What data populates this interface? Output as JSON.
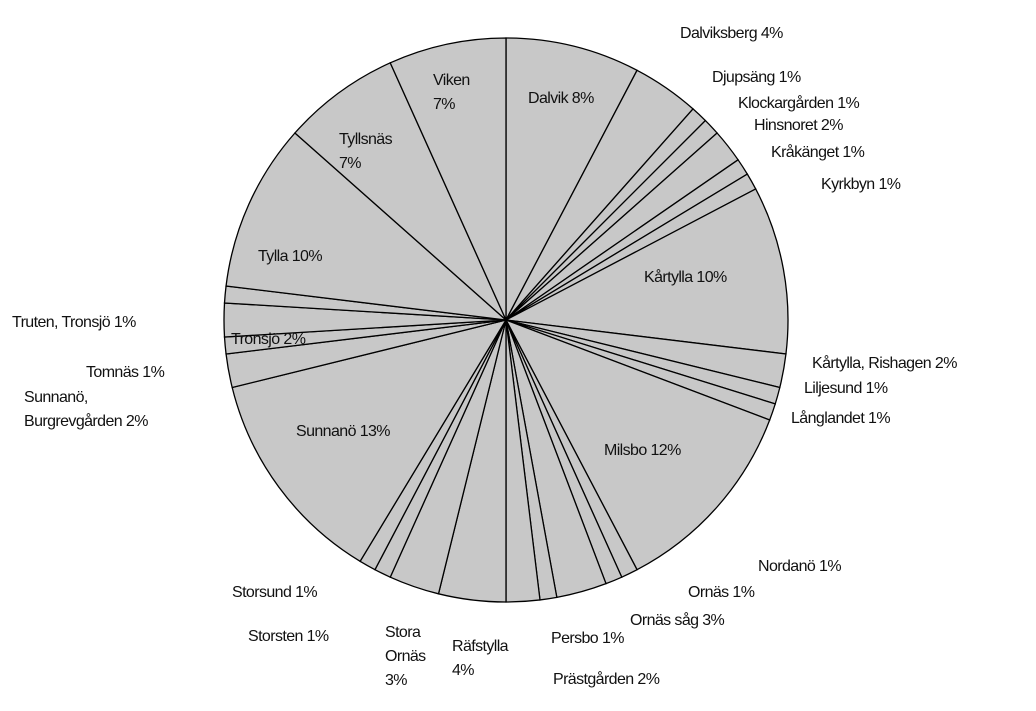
{
  "chart_data": {
    "type": "pie",
    "start_angle_deg": 0,
    "direction": "clockwise",
    "fill_color": "#c8c8c8",
    "stroke_color": "#000000",
    "slices": [
      {
        "label": "Dalvik",
        "value": 8,
        "text": [
          "Dalvik 8%"
        ]
      },
      {
        "label": "Dalviksberg",
        "value": 4,
        "text": [
          "Dalviksberg 4%"
        ]
      },
      {
        "label": "Djupsäng",
        "value": 1,
        "text": [
          "Djupsäng 1%"
        ]
      },
      {
        "label": "Klockargården",
        "value": 1,
        "text": [
          "Klockargården 1%"
        ]
      },
      {
        "label": "Hinsnoret",
        "value": 2,
        "text": [
          "Hinsnoret 2%"
        ]
      },
      {
        "label": "Kråkänget",
        "value": 1,
        "text": [
          "Kråkänget 1%"
        ]
      },
      {
        "label": "Kyrkbyn",
        "value": 1,
        "text": [
          "Kyrkbyn 1%"
        ]
      },
      {
        "label": "Kårtylla",
        "value": 10,
        "text": [
          "Kårtylla 10%"
        ]
      },
      {
        "label": "Kårtylla, Rishagen",
        "value": 2,
        "text": [
          "Kårtylla, Rishagen 2%"
        ]
      },
      {
        "label": "Liljesund",
        "value": 1,
        "text": [
          "Liljesund 1%"
        ]
      },
      {
        "label": "Långlandet",
        "value": 1,
        "text": [
          "Långlandet 1%"
        ]
      },
      {
        "label": "Milsbo",
        "value": 12,
        "text": [
          "Milsbo 12%"
        ]
      },
      {
        "label": "Nordanö",
        "value": 1,
        "text": [
          "Nordanö 1%"
        ]
      },
      {
        "label": "Ornäs",
        "value": 1,
        "text": [
          "Ornäs 1%"
        ]
      },
      {
        "label": "Ornäs såg",
        "value": 3,
        "text": [
          "Ornäs såg 3%"
        ]
      },
      {
        "label": "Persbo",
        "value": 1,
        "text": [
          "Persbo 1%"
        ]
      },
      {
        "label": "Prästgården",
        "value": 2,
        "text": [
          "Prästgården 2%"
        ]
      },
      {
        "label": "Räfstylla",
        "value": 4,
        "text": [
          "Räfstylla",
          "4%"
        ]
      },
      {
        "label": "Stora Ornäs",
        "value": 3,
        "text": [
          "Stora",
          "Ornäs",
          "3%"
        ]
      },
      {
        "label": "Storsten",
        "value": 1,
        "text": [
          "Storsten 1%"
        ]
      },
      {
        "label": "Storsund",
        "value": 1,
        "text": [
          "Storsund 1%"
        ]
      },
      {
        "label": "Sunnanö",
        "value": 13,
        "text": [
          "Sunnanö 13%"
        ]
      },
      {
        "label": "Sunnanö, Burgrevgården",
        "value": 2,
        "text": [
          "Sunnanö,",
          "Burgrevgården 2%"
        ]
      },
      {
        "label": "Tomnäs",
        "value": 1,
        "text": [
          "Tomnäs 1%"
        ]
      },
      {
        "label": "Tronsjö",
        "value": 2,
        "text": [
          "Tronsjö 2%"
        ]
      },
      {
        "label": "Truten, Tronsjö",
        "value": 1,
        "text": [
          "Truten, Tronsjö 1%"
        ]
      },
      {
        "label": "Tylla",
        "value": 10,
        "text": [
          "Tylla 10%"
        ]
      },
      {
        "label": "Tyllsnäs",
        "value": 7,
        "text": [
          "Tyllsnäs",
          "7%"
        ]
      },
      {
        "label": "Viken",
        "value": 7,
        "text": [
          "Viken",
          "7%"
        ]
      }
    ]
  }
}
